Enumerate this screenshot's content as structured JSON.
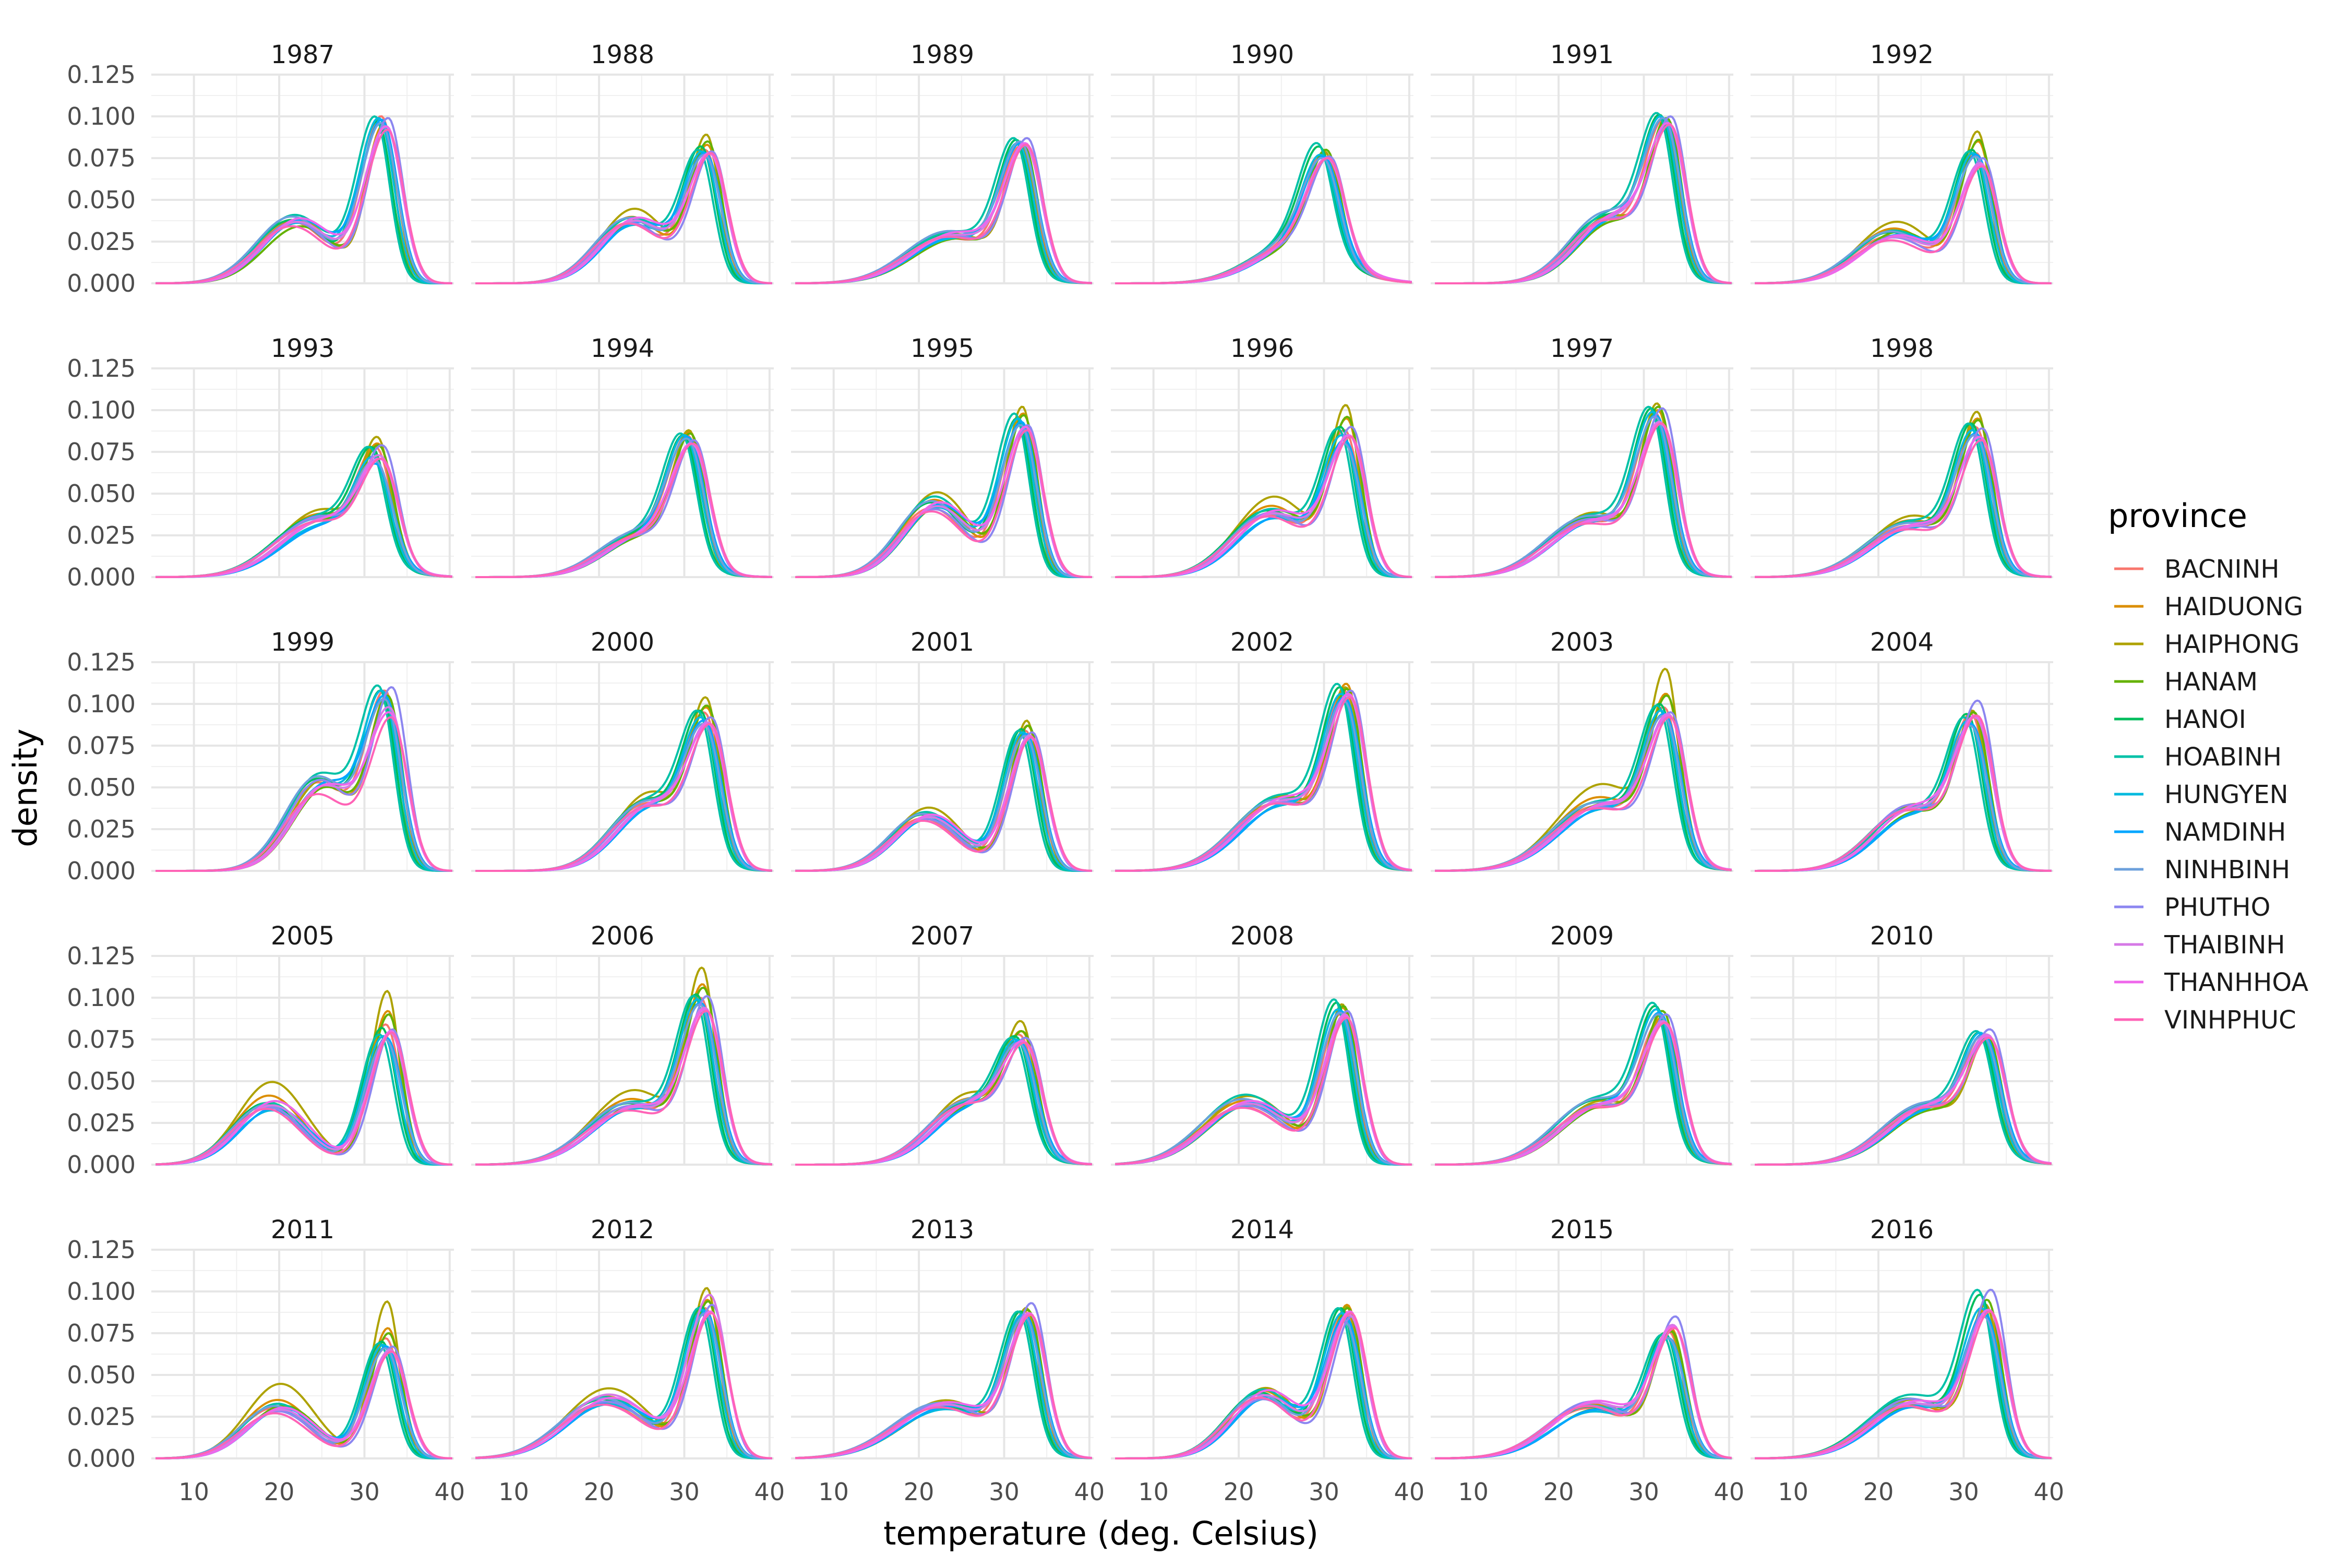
{
  "chart_data": {
    "type": "line",
    "chart_kind": "density faceted small multiples",
    "facet_titles": [
      "1987",
      "1988",
      "1989",
      "1990",
      "1991",
      "1992",
      "1993",
      "1994",
      "1995",
      "1996",
      "1997",
      "1998",
      "1999",
      "2000",
      "2001",
      "2002",
      "2003",
      "2004",
      "2005",
      "2006",
      "2007",
      "2008",
      "2009",
      "2010",
      "2011",
      "2012",
      "2013",
      "2014",
      "2015",
      "2016"
    ],
    "facet_rows": 5,
    "facet_cols": 6,
    "xlabel": "temperature (deg. Celsius)",
    "ylabel": "density",
    "xlim": [
      5,
      40.5
    ],
    "ylim": [
      0,
      0.125
    ],
    "x_ticks": [
      10,
      20,
      30,
      40
    ],
    "y_ticks": [
      0,
      0.025,
      0.05,
      0.075,
      0.1,
      0.125
    ],
    "y_tick_labels": [
      "0.000",
      "0.025",
      "0.050",
      "0.075",
      "0.100",
      "0.125"
    ],
    "grid": true,
    "legend": {
      "title": "province",
      "placement": "right",
      "entries": [
        "BACNINH",
        "HAIDUONG",
        "HAIPHONG",
        "HANAM",
        "HANOI",
        "HOABINH",
        "HUNGYEN",
        "NAMDINH",
        "NINHBINH",
        "PHUTHO",
        "THAIBINH",
        "THANHHOA",
        "VINHPHUC"
      ],
      "colors": [
        "#F8766D",
        "#DB8E00",
        "#AEA200",
        "#64B200",
        "#00BD5C",
        "#00C1A7",
        "#00BADE",
        "#00A6FF",
        "#6CA0DC",
        "#8C86F0",
        "#D679E6",
        "#EF67EB",
        "#FF63B6"
      ]
    },
    "series_peaks_by_facet": {
      "1987": [
        0.1,
        0.095,
        0.092,
        0.093,
        0.097,
        0.1,
        0.099,
        0.098,
        0.096,
        0.099,
        0.094,
        0.094,
        0.092
      ],
      "1988": [
        0.08,
        0.083,
        0.089,
        0.085,
        0.082,
        0.08,
        0.079,
        0.078,
        0.077,
        0.079,
        0.078,
        0.078,
        0.078
      ],
      "1989": [
        0.082,
        0.083,
        0.082,
        0.083,
        0.086,
        0.087,
        0.084,
        0.084,
        0.085,
        0.087,
        0.083,
        0.084,
        0.083
      ],
      "1990": [
        0.077,
        0.078,
        0.079,
        0.08,
        0.082,
        0.084,
        0.077,
        0.076,
        0.075,
        0.076,
        0.075,
        0.075,
        0.075
      ],
      "1991": [
        0.098,
        0.097,
        0.098,
        0.099,
        0.101,
        0.102,
        0.1,
        0.099,
        0.099,
        0.1,
        0.096,
        0.096,
        0.095
      ],
      "1992": [
        0.078,
        0.085,
        0.091,
        0.086,
        0.08,
        0.079,
        0.078,
        0.077,
        0.076,
        0.075,
        0.072,
        0.071,
        0.07
      ],
      "1993": [
        0.078,
        0.08,
        0.084,
        0.079,
        0.078,
        0.078,
        0.072,
        0.068,
        0.07,
        0.079,
        0.073,
        0.071,
        0.071
      ],
      "1994": [
        0.085,
        0.087,
        0.088,
        0.086,
        0.085,
        0.086,
        0.085,
        0.084,
        0.083,
        0.082,
        0.08,
        0.08,
        0.08
      ],
      "1995": [
        0.093,
        0.098,
        0.102,
        0.097,
        0.095,
        0.098,
        0.095,
        0.093,
        0.091,
        0.091,
        0.09,
        0.09,
        0.088
      ],
      "1996": [
        0.088,
        0.095,
        0.103,
        0.096,
        0.09,
        0.089,
        0.085,
        0.082,
        0.08,
        0.09,
        0.085,
        0.085,
        0.084
      ],
      "1997": [
        0.098,
        0.1,
        0.104,
        0.102,
        0.101,
        0.102,
        0.099,
        0.097,
        0.096,
        0.101,
        0.093,
        0.092,
        0.092
      ],
      "1998": [
        0.09,
        0.095,
        0.099,
        0.094,
        0.092,
        0.092,
        0.088,
        0.086,
        0.085,
        0.089,
        0.084,
        0.084,
        0.082
      ],
      "1999": [
        0.108,
        0.105,
        0.102,
        0.105,
        0.108,
        0.111,
        0.108,
        0.105,
        0.103,
        0.11,
        0.098,
        0.095,
        0.092
      ],
      "2000": [
        0.095,
        0.098,
        0.104,
        0.099,
        0.096,
        0.096,
        0.092,
        0.09,
        0.088,
        0.092,
        0.089,
        0.088,
        0.088
      ],
      "2001": [
        0.084,
        0.087,
        0.09,
        0.087,
        0.085,
        0.084,
        0.083,
        0.082,
        0.081,
        0.083,
        0.081,
        0.08,
        0.08
      ],
      "2002": [
        0.108,
        0.112,
        0.11,
        0.109,
        0.11,
        0.112,
        0.106,
        0.104,
        0.102,
        0.108,
        0.105,
        0.106,
        0.104
      ],
      "2003": [
        0.098,
        0.106,
        0.121,
        0.105,
        0.1,
        0.099,
        0.096,
        0.094,
        0.093,
        0.095,
        0.094,
        0.093,
        0.092
      ],
      "2004": [
        0.094,
        0.095,
        0.096,
        0.095,
        0.094,
        0.092,
        0.09,
        0.088,
        0.087,
        0.102,
        0.092,
        0.093,
        0.093
      ],
      "2005": [
        0.084,
        0.092,
        0.104,
        0.09,
        0.082,
        0.078,
        0.077,
        0.076,
        0.075,
        0.081,
        0.079,
        0.08,
        0.079
      ],
      "2006": [
        0.1,
        0.108,
        0.118,
        0.106,
        0.102,
        0.101,
        0.099,
        0.097,
        0.096,
        0.101,
        0.094,
        0.093,
        0.092
      ],
      "2007": [
        0.078,
        0.08,
        0.086,
        0.08,
        0.077,
        0.076,
        0.075,
        0.074,
        0.073,
        0.076,
        0.074,
        0.074,
        0.073
      ],
      "2008": [
        0.09,
        0.094,
        0.096,
        0.095,
        0.097,
        0.099,
        0.093,
        0.092,
        0.091,
        0.092,
        0.09,
        0.089,
        0.088
      ],
      "2009": [
        0.086,
        0.088,
        0.09,
        0.092,
        0.095,
        0.097,
        0.093,
        0.091,
        0.09,
        0.09,
        0.086,
        0.085,
        0.085
      ],
      "2010": [
        0.078,
        0.076,
        0.074,
        0.078,
        0.079,
        0.08,
        0.079,
        0.078,
        0.077,
        0.081,
        0.078,
        0.077,
        0.076
      ],
      "2011": [
        0.072,
        0.078,
        0.094,
        0.075,
        0.07,
        0.069,
        0.068,
        0.067,
        0.066,
        0.067,
        0.065,
        0.064,
        0.064
      ],
      "2012": [
        0.09,
        0.095,
        0.102,
        0.094,
        0.091,
        0.09,
        0.089,
        0.088,
        0.087,
        0.092,
        0.098,
        0.088,
        0.087
      ],
      "2013": [
        0.088,
        0.089,
        0.09,
        0.089,
        0.088,
        0.088,
        0.086,
        0.086,
        0.085,
        0.093,
        0.087,
        0.087,
        0.086
      ],
      "2014": [
        0.088,
        0.092,
        0.091,
        0.09,
        0.09,
        0.09,
        0.087,
        0.085,
        0.082,
        0.085,
        0.086,
        0.088,
        0.087
      ],
      "2015": [
        0.076,
        0.078,
        0.077,
        0.076,
        0.075,
        0.074,
        0.073,
        0.072,
        0.072,
        0.085,
        0.08,
        0.079,
        0.078
      ],
      "2016": [
        0.088,
        0.09,
        0.092,
        0.095,
        0.098,
        0.101,
        0.09,
        0.087,
        0.085,
        0.101,
        0.089,
        0.089,
        0.088
      ]
    }
  }
}
